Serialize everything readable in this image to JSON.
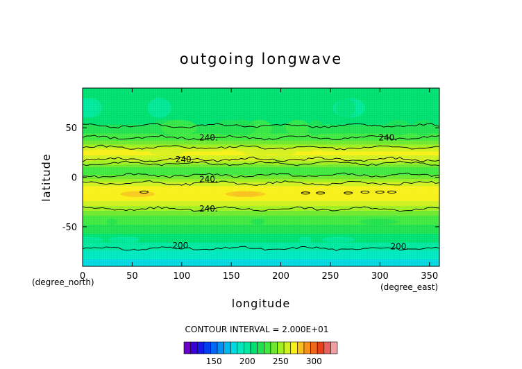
{
  "chart_data": {
    "type": "heatmap",
    "title": "outgoing longwave",
    "xlabel": "longitude",
    "ylabel": "latitude",
    "x_unit": "(degree_east)",
    "y_unit": "(degree_north)",
    "xlim": [
      0,
      360
    ],
    "ylim": [
      -90,
      90
    ],
    "x_ticks": [
      0,
      50,
      100,
      150,
      200,
      250,
      300,
      350
    ],
    "y_ticks": [
      50,
      0,
      -50
    ],
    "contour_interval_text": "CONTOUR INTERVAL = 2.000E+01",
    "zonal_profile": {
      "lat": [
        -90,
        -80,
        -70,
        -60,
        -50,
        -40,
        -30,
        -25,
        -20,
        -15,
        -10,
        -5,
        0,
        5,
        10,
        15,
        20,
        25,
        30,
        35,
        40,
        50,
        60,
        70,
        90
      ],
      "olr": [
        178,
        188,
        200,
        212,
        222,
        234,
        252,
        262,
        272,
        275,
        268,
        254,
        240,
        226,
        236,
        252,
        262,
        268,
        256,
        240,
        230,
        216,
        212,
        212,
        212
      ]
    },
    "contour_lines": [
      {
        "label": "200.",
        "lat": -69,
        "label_lon": 100
      },
      {
        "label": "200.",
        "lat": -70,
        "label_lon": 320
      },
      {
        "label": "240.",
        "lat": -32,
        "label_lon": 127
      },
      {
        "label": "240.",
        "lat": -2,
        "label_lon": 127
      },
      {
        "label": "240.",
        "lat": 18,
        "label_lon": 103
      },
      {
        "label": "240.",
        "lat": 40,
        "label_lon": 127
      },
      {
        "label": "240.",
        "lat": 40,
        "label_lon": 308
      }
    ],
    "colorbar": {
      "ticks": [
        150,
        200,
        250,
        300
      ],
      "min": 105,
      "max": 335,
      "colors": [
        "#6a00c8",
        "#3a00d8",
        "#1818e8",
        "#0040f0",
        "#0068f8",
        "#0090f8",
        "#00b8f0",
        "#00d8e0",
        "#00e8c0",
        "#00e8a0",
        "#00e070",
        "#20e050",
        "#40e840",
        "#70e830",
        "#a0f020",
        "#d0f020",
        "#f8f018",
        "#f8c020",
        "#f89018",
        "#f06818",
        "#e84018",
        "#e86060",
        "#f0a0a0"
      ]
    }
  }
}
